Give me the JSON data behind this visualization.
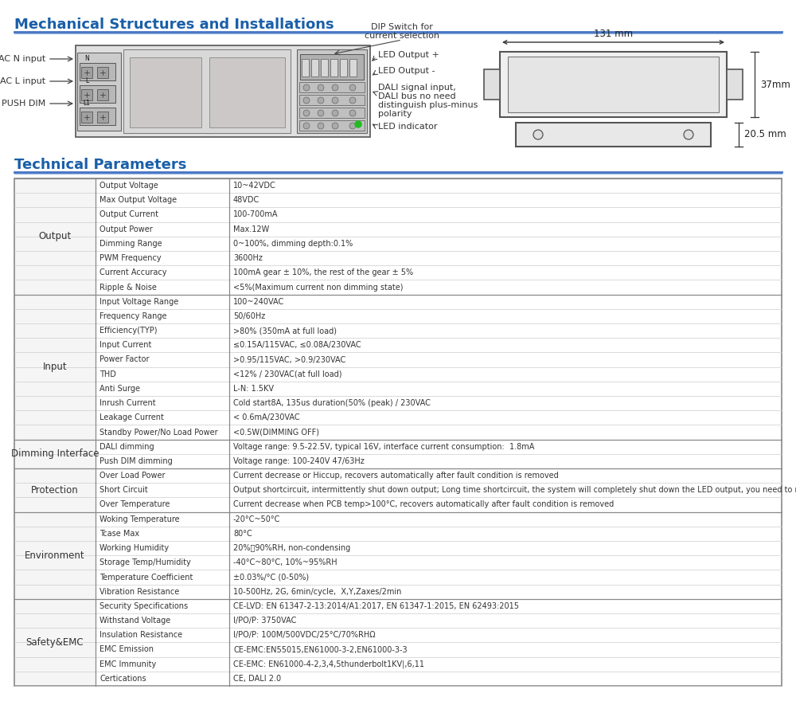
{
  "title1": "Mechanical Structures and Installations",
  "title2": "Technical Parameters",
  "header_color": "#1a5fa8",
  "line_color": "#4472c4",
  "table_border_color": "#888888",
  "table_data": [
    [
      "Output",
      "Output Voltage",
      "10~42VDC"
    ],
    [
      "Output",
      "Max Output Voltage",
      "48VDC"
    ],
    [
      "Output",
      "Output Current",
      "100-700mA"
    ],
    [
      "Output",
      "Output Power",
      "Max.12W"
    ],
    [
      "Output",
      "Dimming Range",
      "0~100%, dimming depth:0.1%"
    ],
    [
      "Output",
      "PWM Frequency",
      "3600Hz"
    ],
    [
      "Output",
      "Current Accuracy",
      "100mA gear ± 10%, the rest of the gear ± 5%"
    ],
    [
      "Output",
      "Ripple & Noise",
      "<5%(Maximum current non dimming state)"
    ],
    [
      "Input",
      "Input Voltage Range",
      "100~240VAC"
    ],
    [
      "Input",
      "Frequency Range",
      "50/60Hz"
    ],
    [
      "Input",
      "Efficiency(TYP)",
      ">80% (350mA at full load)"
    ],
    [
      "Input",
      "Input Current",
      "≤0.15A/115VAC, ≤0.08A/230VAC"
    ],
    [
      "Input",
      "Power Factor",
      ">0.95/115VAC, >0.9/230VAC"
    ],
    [
      "Input",
      "THD",
      "<12% / 230VAC(at full load)"
    ],
    [
      "Input",
      "Anti Surge",
      "L-N: 1.5KV"
    ],
    [
      "Input",
      "Inrush Current",
      "Cold start8A, 135us duration(50% (peak) / 230VAC"
    ],
    [
      "Input",
      "Leakage Current",
      "< 0.6mA/230VAC"
    ],
    [
      "Input",
      "Standby Power/No Load Power",
      "<0.5W(DIMMING OFF)"
    ],
    [
      "Dimming Interface",
      "DALI dimming",
      "Voltage range: 9.5-22.5V, typical 16V, interface current consumption:  1.8mA"
    ],
    [
      "Dimming Interface",
      "Push DIM dimming",
      "Voltage range: 100-240V 47/63Hz"
    ],
    [
      "Protection",
      "Over Load Power",
      "Current decrease or Hiccup, recovers automatically after fault condition is removed"
    ],
    [
      "Protection",
      "Short Circuit",
      "Output shortcircuit, intermittently shut down output; Long time shortcircuit, the system will completely shut down the LED output, you need to manually power on restart activation"
    ],
    [
      "Protection",
      "Over Temperature",
      "Current decrease when PCB temp>100°C, recovers automatically after fault condition is removed"
    ],
    [
      "Environment",
      "Woking Temperature",
      "-20°C~50°C"
    ],
    [
      "Environment",
      "Tcase Max",
      "80°C"
    ],
    [
      "Environment",
      "Working Humidity",
      "20%～90%RH, non-condensing"
    ],
    [
      "Environment",
      "Storage Temp/Humidity",
      "-40°C~80°C, 10%~95%RH"
    ],
    [
      "Environment",
      "Temperature Coefficient",
      "±0.03%/°C (0-50%)"
    ],
    [
      "Environment",
      "Vibration Resistance",
      "10-500Hz, 2G, 6min/cycle,  X,Y,Zaxes/2min"
    ],
    [
      "Safety&EMC",
      "Security Specifications",
      "CE-LVD: EN 61347-2-13:2014/A1:2017, EN 61347-1:2015, EN 62493:2015"
    ],
    [
      "Safety&EMC",
      "Withstand Voltage",
      "I/PO/P: 3750VAC"
    ],
    [
      "Safety&EMC",
      "Insulation Resistance",
      "I/PO/P: 100M/500VDC/25°C/70%RHΩ"
    ],
    [
      "Safety&EMC",
      "EMC Emission",
      "CE-EMC:EN55015,EN61000-3-2,EN61000-3-3"
    ],
    [
      "Safety&EMC",
      "EMC Immunity",
      "CE-EMC: EN61000-4-2,3,4,5thunderbolt1KV|,6,11"
    ],
    [
      "Safety&EMC",
      "Certications",
      "CE, DALI 2.0"
    ]
  ],
  "left_labels": [
    "AC N input",
    "AC L input",
    "PUSH DIM"
  ],
  "right_labels_top": [
    "DIP Switch for\ncurrent selection",
    "LED Output +",
    "LED Output -",
    "DALI signal input,\nDALI bus no need\ndistinguish plus-minus\npolarity",
    "LED indicator"
  ],
  "dim_131": "131 mm",
  "dim_37": "37mm",
  "dim_205": "20.5 mm"
}
